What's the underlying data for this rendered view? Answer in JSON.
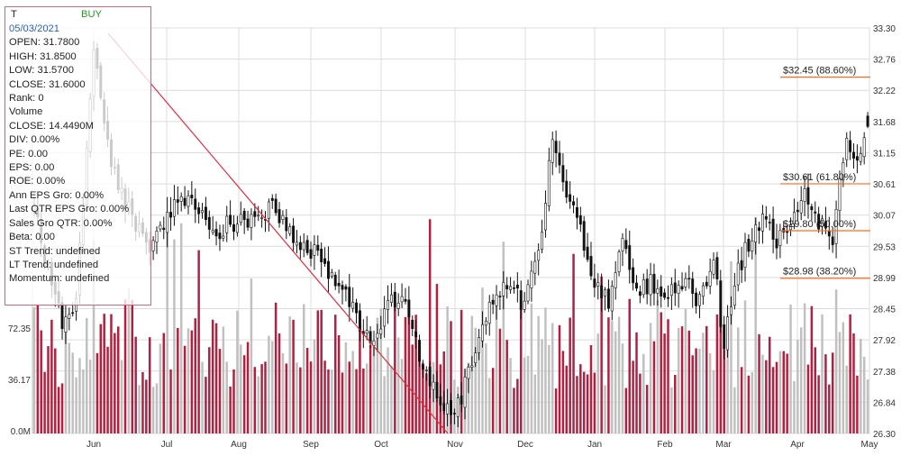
{
  "colors": {
    "up_candle": "#ffffff",
    "down_candle": "#111111",
    "volume_up": "#c0c0c0",
    "volume_down": "#b3203f",
    "trendline": "#e22b3c",
    "fib_line": "#ff6a21",
    "grid": "#dcdcdc",
    "signal": "#1e9e1e",
    "date": "#2a5fb8"
  },
  "info_panel": {
    "symbol": "T",
    "signal": "BUY",
    "date": "05/03/2021",
    "lines": [
      "OPEN: 31.7800",
      "HIGH: 31.8500",
      "LOW: 31.5700",
      "CLOSE: 31.6000",
      "Rank: 0",
      "Volume",
      "CLOSE: 14.4490M",
      "DIV: 0.00%",
      "PE: 0.00",
      "EPS: 0.00",
      "ROE: 0.00%",
      "Ann EPS Gro: 0.00%",
      "Last QTR EPS Gro: 0.00%",
      "Sales Gro QTR: 0.00%",
      "Beta: 0.00",
      "ST Trend: undefined",
      "LT Trend: undefined",
      "Momentum: undefined"
    ]
  },
  "chart_data": {
    "type": "candlestick",
    "x_labels": [
      "Jun",
      "Jul",
      "Aug",
      "Sep",
      "Oct",
      "Nov",
      "Dec",
      "Jan",
      "Feb",
      "Mar",
      "Apr",
      "May"
    ],
    "price_axis": {
      "ticks": [
        "33.30",
        "32.76",
        "32.22",
        "31.68",
        "31.15",
        "30.61",
        "30.07",
        "29.53",
        "28.99",
        "28.45",
        "27.92",
        "27.38",
        "26.84",
        "26.30"
      ],
      "range": [
        26.3,
        33.3
      ]
    },
    "volume_axis": {
      "ticks": [
        "72.35",
        "36.17",
        "0.0M"
      ],
      "range": [
        0,
        108.5
      ]
    },
    "fib_levels": [
      {
        "price": 32.45,
        "label": "$32.45 (88.60%)"
      },
      {
        "price": 30.61,
        "label": "$30.61 (61.80%)"
      },
      {
        "price": 29.8,
        "label": "$29.80 (50.00%)"
      },
      {
        "price": 28.98,
        "label": "$28.98 (38.20%)"
      }
    ],
    "trendline": {
      "from": {
        "x": "Jun",
        "price": 33.3
      },
      "to": {
        "x": "Nov",
        "price": 26.3
      }
    },
    "price_anchors": [
      [
        0,
        30.1
      ],
      [
        8,
        28.2
      ],
      [
        12,
        28.6
      ],
      [
        17,
        33.0
      ],
      [
        22,
        31.0
      ],
      [
        27,
        30.2
      ],
      [
        33,
        29.3
      ],
      [
        38,
        30.1
      ],
      [
        45,
        30.4
      ],
      [
        52,
        29.8
      ],
      [
        60,
        30.0
      ],
      [
        68,
        30.2
      ],
      [
        74,
        29.6
      ],
      [
        80,
        29.4
      ],
      [
        86,
        29.0
      ],
      [
        92,
        28.3
      ],
      [
        97,
        27.8
      ],
      [
        102,
        28.6
      ],
      [
        106,
        28.7
      ],
      [
        110,
        27.6
      ],
      [
        115,
        26.9
      ],
      [
        120,
        26.6
      ],
      [
        124,
        27.3
      ],
      [
        128,
        28.2
      ],
      [
        132,
        28.8
      ],
      [
        136,
        28.9
      ],
      [
        140,
        28.5
      ],
      [
        144,
        29.5
      ],
      [
        148,
        31.3
      ],
      [
        152,
        30.5
      ],
      [
        156,
        29.8
      ],
      [
        160,
        28.8
      ],
      [
        164,
        28.6
      ],
      [
        168,
        29.5
      ],
      [
        172,
        28.8
      ],
      [
        176,
        28.9
      ],
      [
        180,
        28.7
      ],
      [
        186,
        28.9
      ],
      [
        190,
        28.6
      ],
      [
        194,
        29.3
      ],
      [
        197,
        27.8
      ],
      [
        200,
        28.9
      ],
      [
        204,
        29.6
      ],
      [
        208,
        30.0
      ],
      [
        212,
        29.6
      ],
      [
        216,
        30.0
      ],
      [
        220,
        30.4
      ],
      [
        224,
        29.9
      ],
      [
        228,
        29.7
      ],
      [
        232,
        31.4
      ],
      [
        236,
        31.0
      ],
      [
        238,
        31.6
      ]
    ],
    "bars": 239,
    "last_bar": {
      "open": 31.78,
      "high": 31.85,
      "low": 31.57,
      "close": 31.6,
      "volume_m": 14.449
    }
  }
}
